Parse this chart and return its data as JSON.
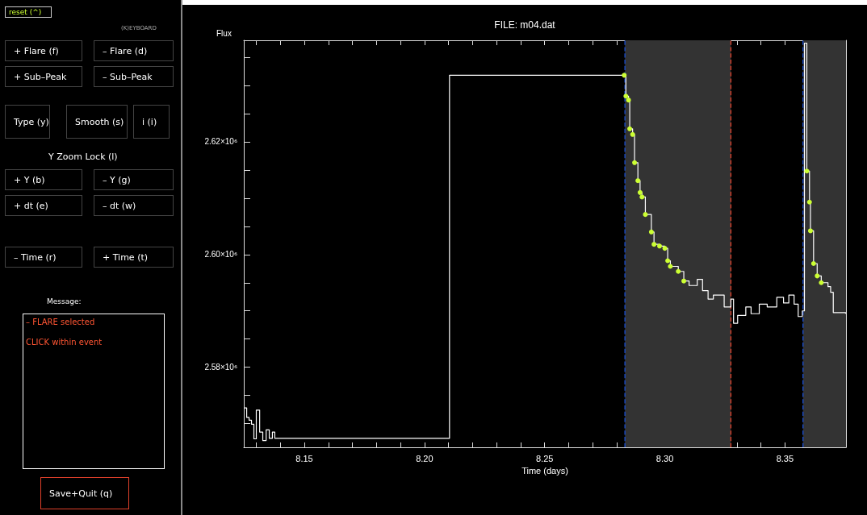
{
  "chart_data": [
    {
      "type": "step",
      "title": "FILE: m04.dat",
      "xlabel": "Time (days)",
      "ylabel": "Flux",
      "xlim": [
        8.1248,
        8.3754
      ],
      "xticks": [
        {
          "value": 8.13,
          "label": null
        },
        {
          "value": 8.14,
          "label": null
        },
        8.15,
        {
          "value": 8.16,
          "label": null
        },
        {
          "value": 8.17,
          "label": null
        },
        {
          "value": 8.18,
          "label": null
        },
        {
          "value": 8.19,
          "label": null
        },
        {
          "value": 8.2,
          "label": "8.20"
        },
        {
          "value": 8.21,
          "label": null
        },
        {
          "value": 8.22,
          "label": null
        },
        {
          "value": 8.23,
          "label": null
        },
        {
          "value": 8.24,
          "label": null
        },
        8.25,
        {
          "value": 8.26,
          "label": null
        },
        {
          "value": 8.27,
          "label": null
        },
        {
          "value": 8.28,
          "label": null
        },
        {
          "value": 8.29,
          "label": null
        },
        {
          "value": 8.3,
          "label": "8.30"
        },
        {
          "value": 8.31,
          "label": null
        },
        {
          "value": 8.32,
          "label": null
        },
        {
          "value": 8.33,
          "label": null
        },
        {
          "value": 8.34,
          "label": null
        },
        8.35,
        {
          "value": 8.36,
          "label": null
        },
        {
          "value": 8.37,
          "label": null
        }
      ],
      "ylim": [
        2565800,
        2638000
      ],
      "yticks": [
        {
          "value": 2570000,
          "label": null
        },
        {
          "value": 2575000,
          "label": null
        },
        {
          "value": 2580000,
          "label": "2.58×10⁶"
        },
        {
          "value": 2585000,
          "label": null
        },
        {
          "value": 2590000,
          "label": null
        },
        {
          "value": 2595000,
          "label": null
        },
        {
          "value": 2600000,
          "label": "2.60×10⁶"
        },
        {
          "value": 2605000,
          "label": null
        },
        {
          "value": 2610000,
          "label": null
        },
        {
          "value": 2615000,
          "label": null
        },
        {
          "value": 2620000,
          "label": "2.62×10⁶"
        },
        {
          "value": 2625000,
          "label": null
        },
        {
          "value": 2630000,
          "label": null
        },
        {
          "value": 2635000,
          "label": null
        }
      ],
      "series": [
        {
          "type": "step",
          "color": "#ffffff",
          "marker": "none",
          "x": [
            8.125,
            8.126,
            8.127,
            8.128,
            8.129,
            8.13,
            8.1314,
            8.1327,
            8.1341,
            8.1354,
            8.1367,
            8.1377,
            8.2104,
            8.2831,
            8.2838,
            8.2849,
            8.2854,
            8.2866,
            8.2874,
            8.2888,
            8.2897,
            8.2905,
            8.2919,
            8.2944,
            8.2955,
            8.2978,
            8.3,
            8.3012,
            8.3023,
            8.3056,
            8.3079,
            8.3101,
            8.3135,
            8.3157,
            8.318,
            8.3202,
            8.3247,
            8.3275,
            8.3286,
            8.3303,
            8.3337,
            8.3359,
            8.3393,
            8.3426,
            8.3466,
            8.3494,
            8.3516,
            8.3538,
            8.3555,
            8.3572,
            8.3581,
            8.3591,
            8.3602,
            8.3606,
            8.3619,
            8.3634,
            8.3651,
            8.3679,
            8.369,
            8.3701,
            8.3752
          ],
          "values": [
            2572800,
            2571100,
            2570600,
            2569900,
            2567300,
            2572400,
            2568500,
            2567000,
            2568900,
            2567400,
            2568500,
            2567400,
            2631800,
            2631800,
            2628100,
            2627400,
            2622300,
            2621300,
            2616300,
            2613100,
            2611000,
            2610200,
            2607100,
            2604000,
            2601800,
            2601500,
            2601100,
            2598900,
            2597900,
            2597000,
            2595300,
            2594500,
            2595600,
            2593600,
            2592100,
            2592800,
            2590700,
            2592100,
            2587800,
            2589200,
            2590700,
            2589500,
            2591200,
            2590700,
            2592400,
            2591400,
            2592800,
            2591200,
            2589000,
            2590000,
            2637500,
            2614800,
            2609300,
            2604200,
            2598400,
            2596200,
            2595000,
            2594300,
            2593300,
            2589700,
            2589500
          ]
        },
        {
          "type": "scatter",
          "color": "#ccff33",
          "marker": "circle",
          "x": [
            8.2831,
            8.2838,
            8.2849,
            8.2854,
            8.2866,
            8.2874,
            8.2888,
            8.2897,
            8.2905,
            8.2919,
            8.2944,
            8.2955,
            8.2978,
            8.3,
            8.3012,
            8.3023,
            8.3056,
            8.3079,
            8.3591,
            8.3602,
            8.3606,
            8.3619,
            8.3634,
            8.3651
          ],
          "values": [
            2631800,
            2628100,
            2627400,
            2622300,
            2621300,
            2616300,
            2613100,
            2611000,
            2610200,
            2607100,
            2604000,
            2601800,
            2601500,
            2601100,
            2598900,
            2597900,
            2597000,
            2595300,
            2614800,
            2609300,
            2604200,
            2598400,
            2596200,
            2595000
          ]
        }
      ],
      "bands": [
        {
          "axis": "x",
          "from": 8.2834,
          "to": 8.3275,
          "color": "#333333"
        },
        {
          "axis": "x",
          "from": 8.3575,
          "to": 8.3754,
          "color": "#333333"
        }
      ],
      "ref_lines": [
        {
          "axis": "x",
          "value": 8.2834,
          "color": "#1a4fd6",
          "line_style": "dashed"
        },
        {
          "axis": "x",
          "value": 8.3275,
          "color": "#e0402a",
          "line_style": "dashed"
        },
        {
          "axis": "x",
          "value": 8.3575,
          "color": "#1a4fd6",
          "line_style": "dashed"
        }
      ]
    },
    {
      "type": "other",
      "annotations": [
        "reset (^)",
        "(K)EYBOARD",
        "+ Flare (f)",
        "– Flare (d)",
        "+ Sub–Peak",
        "– Sub–Peak",
        "Type (y)",
        "Smooth (s)",
        "i (i)",
        "Y Zoom Lock (l)",
        "+ Y (b)",
        "– Y (g)",
        "+ dt (e)",
        "– dt (w)",
        "– Time (r)",
        "+ Time (t)",
        "Message:",
        "– FLARE selected",
        "CLICK within event",
        "Save+Quit (q)"
      ]
    }
  ]
}
